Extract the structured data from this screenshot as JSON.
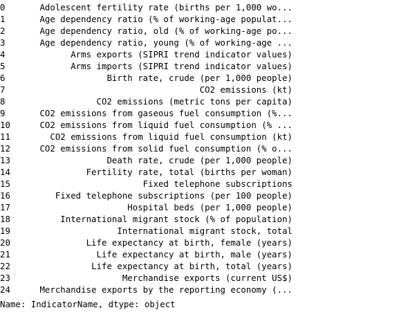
{
  "series": {
    "rows": [
      {
        "index": "0",
        "value": "Adolescent fertility rate (births per 1,000 wo..."
      },
      {
        "index": "1",
        "value": "Age dependency ratio (% of working-age populat..."
      },
      {
        "index": "2",
        "value": "Age dependency ratio, old (% of working-age po..."
      },
      {
        "index": "3",
        "value": "Age dependency ratio, young (% of working-age ..."
      },
      {
        "index": "4",
        "value": "Arms exports (SIPRI trend indicator values)"
      },
      {
        "index": "5",
        "value": "Arms imports (SIPRI trend indicator values)"
      },
      {
        "index": "6",
        "value": "Birth rate, crude (per 1,000 people)"
      },
      {
        "index": "7",
        "value": "CO2 emissions (kt)"
      },
      {
        "index": "8",
        "value": "CO2 emissions (metric tons per capita)"
      },
      {
        "index": "9",
        "value": "CO2 emissions from gaseous fuel consumption (%..."
      },
      {
        "index": "10",
        "value": "CO2 emissions from liquid fuel consumption (% ..."
      },
      {
        "index": "11",
        "value": "CO2 emissions from liquid fuel consumption (kt)"
      },
      {
        "index": "12",
        "value": "CO2 emissions from solid fuel consumption (% o..."
      },
      {
        "index": "13",
        "value": "Death rate, crude (per 1,000 people)"
      },
      {
        "index": "14",
        "value": "Fertility rate, total (births per woman)"
      },
      {
        "index": "15",
        "value": "Fixed telephone subscriptions"
      },
      {
        "index": "16",
        "value": "Fixed telephone subscriptions (per 100 people)"
      },
      {
        "index": "17",
        "value": "Hospital beds (per 1,000 people)"
      },
      {
        "index": "18",
        "value": "International migrant stock (% of population)"
      },
      {
        "index": "19",
        "value": "International migrant stock, total"
      },
      {
        "index": "20",
        "value": "Life expectancy at birth, female (years)"
      },
      {
        "index": "21",
        "value": "Life expectancy at birth, male (years)"
      },
      {
        "index": "22",
        "value": "Life expectancy at birth, total (years)"
      },
      {
        "index": "23",
        "value": "Merchandise exports (current US$)"
      },
      {
        "index": "24",
        "value": "Merchandise exports by the reporting economy (..."
      }
    ],
    "footer": "Name: IndicatorName, dtype: object"
  }
}
